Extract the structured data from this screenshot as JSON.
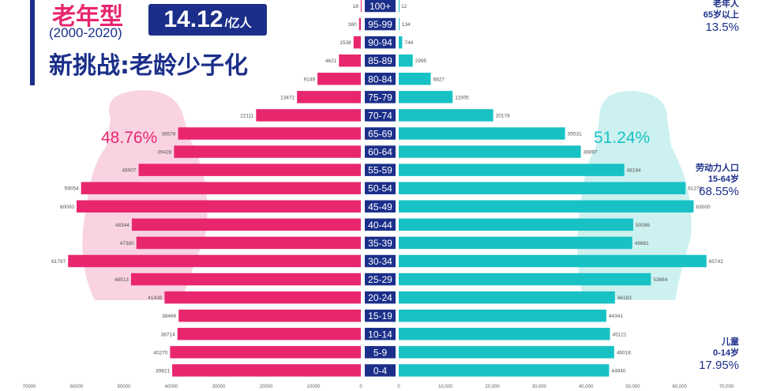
{
  "header": {
    "type_label": "老年型",
    "years": "(2000-2020)",
    "total_value": "14.12",
    "total_unit": "/亿人",
    "subtitle": "新挑战:老龄少子化"
  },
  "percent_female": "48.76%",
  "percent_male": "51.24%",
  "groups": {
    "elderly": {
      "title1": "老年人",
      "title2": "65岁以上",
      "value": "13.5%"
    },
    "working": {
      "title1": "劳动力人口",
      "title2": "15-64岁",
      "value": "68.55%"
    },
    "children": {
      "title1": "儿童",
      "title2": "0-14岁",
      "value": "17.95%"
    }
  },
  "colors": {
    "female": "#e8266e",
    "male": "#18c2c4",
    "label_bg": "#1b2f8a",
    "female_blob": "#f8cede",
    "male_blob": "#c6f0ee"
  },
  "chart_data": {
    "type": "bar",
    "orientation": "horizontal-population-pyramid",
    "categories": [
      "100+",
      "95-99",
      "90-94",
      "85-89",
      "80-84",
      "75-79",
      "70-74",
      "65-69",
      "60-64",
      "55-59",
      "50-54",
      "45-49",
      "40-44",
      "35-39",
      "30-34",
      "25-29",
      "20-24",
      "15-19",
      "10-14",
      "5-9",
      "0-4"
    ],
    "series": [
      {
        "side": "left",
        "values": [
          18,
          380,
          1538,
          4621,
          9149,
          13472,
          22111,
          38578,
          39428,
          46907,
          59054,
          60000,
          48344,
          47380,
          61797,
          48513,
          41438,
          38466,
          38714,
          40270,
          39821
        ],
        "labels": [
          "18",
          "380",
          "1538",
          "4621",
          "9149",
          "13472",
          "22111",
          "38578",
          "39428",
          "46907",
          "59054",
          "60000",
          "48344",
          "47380",
          "61797",
          "48513",
          "41438",
          "38466",
          "38714",
          "40270",
          "39821"
        ]
      },
      {
        "side": "right",
        "values": [
          12,
          134,
          744,
          2995,
          6827,
          11505,
          20178,
          35531,
          38897,
          48184,
          61276,
          63000,
          50086,
          49881,
          65742,
          53864,
          46183,
          44341,
          45121,
          46018,
          44940
        ],
        "labels": [
          "12",
          "134",
          "744",
          "2995",
          "6827",
          "11505",
          "20178",
          "35531",
          "38897",
          "48184",
          "61276",
          "63000",
          "50086",
          "49881",
          "65742",
          "53864",
          "46183",
          "44341",
          "45121",
          "46018",
          "44940"
        ]
      }
    ],
    "x_ticks_left": [
      "70000",
      "60000",
      "50000",
      "40000",
      "30000",
      "20000",
      "10000",
      "0"
    ],
    "x_ticks_right": [
      "0",
      "10,000",
      "20,000",
      "30,000",
      "40,000",
      "50,000",
      "60,000",
      "70,000"
    ],
    "xlim": [
      0,
      70000
    ],
    "grid": false
  }
}
